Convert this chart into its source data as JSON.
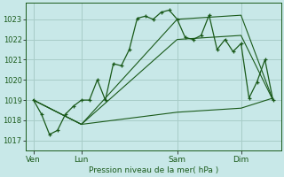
{
  "bg_color": "#c8e8e8",
  "plot_bg_color": "#c8e8e8",
  "grid_color": "#a8ccc8",
  "line_color": "#1a5a1a",
  "title": "Pression niveau de la mer( hPa )",
  "ylim": [
    1016.5,
    1023.8
  ],
  "yticks": [
    1017,
    1018,
    1019,
    1020,
    1021,
    1022,
    1023
  ],
  "xtick_labels": [
    "Ven",
    "Lun",
    "Sam",
    "Dim"
  ],
  "xtick_positions": [
    0,
    6,
    18,
    26
  ],
  "vline_positions": [
    0,
    6,
    18,
    26
  ],
  "xlim": [
    -1,
    31
  ],
  "line1_x": [
    0,
    1,
    2,
    3,
    4,
    5,
    6,
    7,
    8,
    9,
    10,
    11,
    12,
    13,
    14,
    15,
    16,
    17,
    18,
    19,
    20,
    21,
    22,
    23,
    24,
    25,
    26,
    27,
    28,
    29,
    30
  ],
  "line1_y": [
    1019.0,
    1018.3,
    1017.3,
    1017.5,
    1018.3,
    1018.7,
    1019.0,
    1019.0,
    1020.0,
    1019.0,
    1020.8,
    1020.7,
    1021.5,
    1023.05,
    1023.15,
    1023.0,
    1023.35,
    1023.45,
    1023.0,
    1022.1,
    1022.0,
    1022.2,
    1023.2,
    1021.5,
    1022.0,
    1021.4,
    1021.8,
    1019.1,
    1019.9,
    1021.0,
    1019.0
  ],
  "line2_x": [
    0,
    6,
    18,
    26,
    30
  ],
  "line2_y": [
    1019.0,
    1017.8,
    1018.4,
    1018.6,
    1019.1
  ],
  "line3_x": [
    0,
    6,
    18,
    26,
    30
  ],
  "line3_y": [
    1019.0,
    1017.8,
    1023.0,
    1023.2,
    1019.0
  ],
  "line4_x": [
    0,
    6,
    18,
    26,
    30
  ],
  "line4_y": [
    1019.0,
    1017.8,
    1022.0,
    1022.2,
    1019.0
  ]
}
